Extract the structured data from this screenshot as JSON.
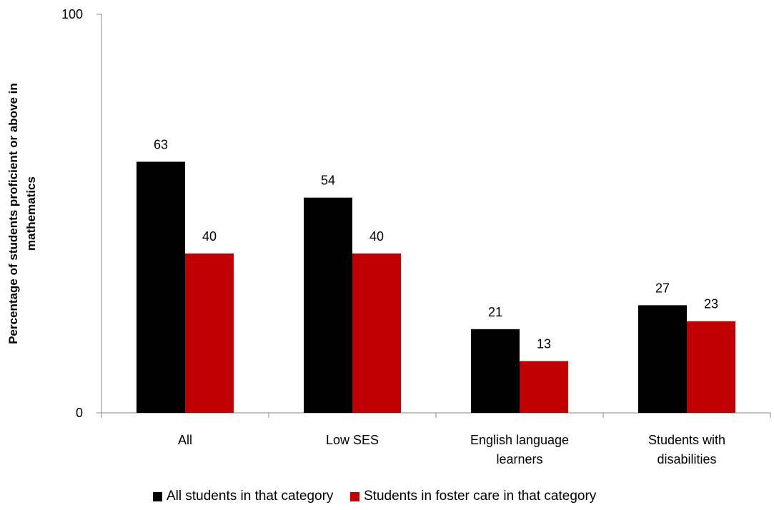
{
  "chart_data": {
    "type": "bar",
    "categories": [
      "All",
      "Low SES",
      "English language learners",
      "Students with disabilities"
    ],
    "category_lines": [
      [
        "All"
      ],
      [
        "Low SES"
      ],
      [
        "English language",
        "learners"
      ],
      [
        "Students with",
        "disabilities"
      ]
    ],
    "series": [
      {
        "name": "All students in that category",
        "color": "#000000",
        "values": [
          63,
          54,
          21,
          27
        ]
      },
      {
        "name": "Students in foster care in that category",
        "color": "#c00000",
        "values": [
          40,
          40,
          13,
          23
        ]
      }
    ],
    "ylabel_lines": [
      "Percentage of students proficient or above in",
      "mathematics"
    ],
    "xlabel": "",
    "ylim": [
      0,
      100
    ],
    "yticks": [
      0,
      100
    ],
    "legend_position": "bottom",
    "grid": false
  }
}
